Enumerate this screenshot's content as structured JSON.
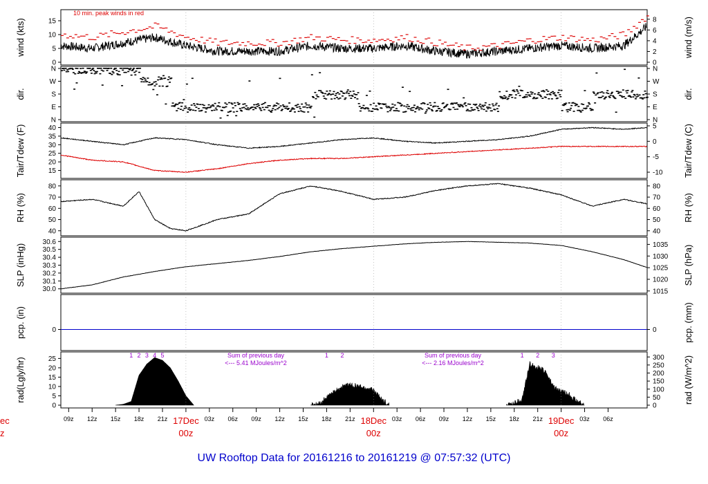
{
  "title": "UW Rooftop Data for 20161216  to  20161219 @ 07:57:32  (UTC)",
  "chart_data": [
    {
      "id": "wind",
      "type": "line",
      "ylabel_left": "wind (kts)",
      "ylabel_right": "wind (m/s)",
      "ylim": [
        0,
        18
      ],
      "yticks_left": [
        0,
        5,
        10,
        15
      ],
      "yticks_right": [
        0,
        2,
        4,
        6,
        8
      ],
      "annotation": "10 min. peak winds in red",
      "series": [
        {
          "name": "wind",
          "color": "#000000",
          "x": [
            0,
            4,
            8,
            12,
            16,
            20,
            24,
            28,
            32,
            36,
            40,
            44,
            48,
            52,
            56,
            60,
            64,
            68,
            72,
            75
          ],
          "values": [
            6,
            5,
            7,
            9,
            6,
            4,
            4,
            4,
            6,
            5,
            5,
            6,
            4,
            3,
            4,
            5,
            6,
            5,
            6,
            13
          ]
        },
        {
          "name": "10 min peak",
          "color": "#dd0000",
          "x": [
            0,
            4,
            8,
            12,
            16,
            20,
            24,
            28,
            32,
            36,
            40,
            44,
            48,
            52,
            56,
            60,
            64,
            68,
            72,
            75
          ],
          "values": [
            10,
            9,
            11,
            13,
            9,
            7,
            7,
            7,
            9,
            8,
            8,
            9,
            7,
            5,
            6,
            8,
            9,
            8,
            10,
            17
          ]
        }
      ]
    },
    {
      "id": "dir",
      "type": "scatter",
      "ylabel_left": "dir.",
      "ylabel_right": "dir.",
      "yticks_left": [
        "N",
        "W",
        "S",
        "E",
        "N"
      ],
      "yticks_right": [
        "N",
        "W",
        "S",
        "E",
        "N"
      ],
      "series": [
        {
          "name": "direction",
          "color": "#000000",
          "x": [
            0,
            4,
            8,
            10,
            14,
            18,
            22,
            26,
            29,
            32,
            35,
            38,
            40,
            44,
            48,
            52,
            56,
            60,
            64,
            68,
            72,
            75
          ],
          "values": [
            "N",
            "N",
            "N",
            "W",
            "E",
            "E",
            "E",
            "E",
            "E",
            "S",
            "S",
            "E",
            "E",
            "E",
            "E",
            "E",
            "S",
            "S",
            "E",
            "S",
            "S",
            "S"
          ]
        }
      ]
    },
    {
      "id": "temp",
      "type": "line",
      "ylabel_left": "Tair/Tdew (F)",
      "ylabel_right": "Tair/Tdew (C)",
      "ylim": [
        12,
        41
      ],
      "yticks_left": [
        15,
        20,
        25,
        30,
        35,
        40
      ],
      "yticks_right": [
        -10,
        -5,
        0,
        5
      ],
      "series": [
        {
          "name": "Tair",
          "color": "#000000",
          "x": [
            0,
            4,
            8,
            12,
            16,
            20,
            24,
            28,
            32,
            36,
            40,
            44,
            48,
            52,
            56,
            60,
            64,
            68,
            72,
            75
          ],
          "values": [
            34,
            32,
            30,
            34,
            33,
            30,
            28,
            29,
            31,
            33,
            34,
            32,
            31,
            32,
            33,
            35,
            39,
            40,
            39,
            40
          ]
        },
        {
          "name": "Tdew",
          "color": "#dd0000",
          "x": [
            0,
            4,
            8,
            12,
            16,
            20,
            24,
            28,
            32,
            36,
            40,
            44,
            48,
            52,
            56,
            60,
            64,
            68,
            72,
            75
          ],
          "values": [
            24,
            21,
            20,
            15,
            14,
            16,
            19,
            21,
            22,
            22,
            23,
            24,
            25,
            26,
            27,
            28,
            29,
            29,
            29,
            29
          ]
        }
      ]
    },
    {
      "id": "rh",
      "type": "line",
      "ylabel_left": "RH (%)",
      "ylabel_right": "RH (%)",
      "ylim": [
        38,
        83
      ],
      "yticks_left": [
        40,
        50,
        60,
        70,
        80
      ],
      "yticks_right": [
        40,
        50,
        60,
        70,
        80
      ],
      "series": [
        {
          "name": "RH",
          "color": "#000000",
          "x": [
            0,
            4,
            8,
            10,
            12,
            14,
            16,
            20,
            24,
            28,
            32,
            36,
            40,
            44,
            48,
            52,
            56,
            60,
            64,
            68,
            72,
            75
          ],
          "values": [
            66,
            68,
            62,
            75,
            50,
            42,
            40,
            50,
            55,
            73,
            80,
            75,
            68,
            70,
            76,
            80,
            82,
            78,
            72,
            62,
            68,
            64
          ]
        }
      ]
    },
    {
      "id": "slp",
      "type": "line",
      "ylabel_left": "SLP (inHg)",
      "ylabel_right": "SLP (hPa)",
      "ylim": [
        29.98,
        30.62
      ],
      "yticks_left": [
        "30.0",
        "30.1",
        "30.2",
        "30.3",
        "30.4",
        "30.5",
        "30.6"
      ],
      "yticks_right": [
        1015,
        1020,
        1025,
        1030,
        1035
      ],
      "series": [
        {
          "name": "SLP",
          "color": "#000000",
          "x": [
            0,
            4,
            8,
            12,
            16,
            20,
            24,
            28,
            32,
            36,
            40,
            44,
            48,
            52,
            56,
            60,
            64,
            68,
            72,
            75
          ],
          "values": [
            30.0,
            30.05,
            30.15,
            30.22,
            30.28,
            30.32,
            30.36,
            30.41,
            30.47,
            30.51,
            30.54,
            30.57,
            30.59,
            30.6,
            30.59,
            30.58,
            30.55,
            30.47,
            30.37,
            30.27
          ]
        }
      ]
    },
    {
      "id": "pcp",
      "type": "line",
      "ylabel_left": "pcp. (in)",
      "ylabel_right": "pcp. (mm)",
      "yticks_left": [
        0
      ],
      "yticks_right": [
        0
      ],
      "series": [
        {
          "name": "precip",
          "color": "#0000cc",
          "x": [
            0,
            75
          ],
          "values": [
            0,
            0
          ]
        }
      ]
    },
    {
      "id": "rad",
      "type": "area",
      "ylabel_left": "rad(Lgly/hr)",
      "ylabel_right": "rad (W/m^2)",
      "ylim": [
        0,
        27
      ],
      "yticks_left": [
        0,
        5,
        10,
        15,
        20,
        25
      ],
      "yticks_right": [
        0,
        50,
        100,
        150,
        200,
        250,
        300
      ],
      "series": [
        {
          "name": "day1",
          "color": "#000000",
          "x": [
            7,
            8,
            9,
            10,
            11,
            12,
            13,
            14,
            15,
            16,
            17
          ],
          "values": [
            0,
            0.5,
            2,
            16,
            22,
            25.5,
            24,
            20,
            13,
            5,
            0
          ]
        },
        {
          "name": "day2",
          "color": "#000000",
          "x": [
            32,
            33,
            34,
            35,
            36,
            37,
            38,
            39,
            40,
            41,
            42
          ],
          "values": [
            0,
            0.5,
            4,
            7,
            10,
            11,
            10,
            9,
            8,
            3,
            0
          ]
        },
        {
          "name": "day3",
          "color": "#000000",
          "x": [
            57,
            58,
            59,
            60,
            61,
            62,
            63,
            64,
            65,
            66,
            67
          ],
          "values": [
            0,
            1,
            3,
            22,
            20,
            18,
            10,
            7,
            6,
            2,
            0
          ]
        }
      ],
      "day_markers": [
        {
          "x": 11,
          "labels": [
            "1",
            "2",
            "3",
            "4",
            "5"
          ]
        },
        {
          "x": 36,
          "labels": [
            "1",
            "2"
          ]
        },
        {
          "x": 61,
          "labels": [
            "1",
            "2",
            "3"
          ]
        }
      ],
      "sum_labels": [
        {
          "line1": "Sum of previous day",
          "line2": "<--- 5.41 MJoules/m^2"
        },
        {
          "line1": "Sum of previous day",
          "line2": "<--- 2.16 MJoules/m^2"
        }
      ]
    }
  ],
  "x_axis": {
    "ticks": [
      {
        "x": 1,
        "label": "09z"
      },
      {
        "x": 4,
        "label": "12z"
      },
      {
        "x": 7,
        "label": "15z"
      },
      {
        "x": 10,
        "label": "18z"
      },
      {
        "x": 13,
        "label": "21z"
      },
      {
        "x": 16,
        "label": "17Dec",
        "sub": "00z",
        "major": true
      },
      {
        "x": 19,
        "label": "03z"
      },
      {
        "x": 22,
        "label": "06z"
      },
      {
        "x": 25,
        "label": "09z"
      },
      {
        "x": 28,
        "label": "12z"
      },
      {
        "x": 31,
        "label": "15z"
      },
      {
        "x": 34,
        "label": "18z"
      },
      {
        "x": 37,
        "label": "21z"
      },
      {
        "x": 40,
        "label": "18Dec",
        "sub": "00z",
        "major": true
      },
      {
        "x": 43,
        "label": "03z"
      },
      {
        "x": 46,
        "label": "06z"
      },
      {
        "x": 49,
        "label": "09z"
      },
      {
        "x": 52,
        "label": "12z"
      },
      {
        "x": 55,
        "label": "15z"
      },
      {
        "x": 58,
        "label": "18z"
      },
      {
        "x": 61,
        "label": "21z"
      },
      {
        "x": 64,
        "label": "19Dec",
        "sub": "00z",
        "major": true
      },
      {
        "x": 67,
        "label": "03z"
      },
      {
        "x": 70,
        "label": "06z"
      }
    ],
    "edge_label": "ec",
    "edge_sub": "z"
  },
  "colors": {
    "axis": "#000000",
    "red": "#dd0000",
    "blue": "#0000cc",
    "purple": "#9900cc",
    "title": "#0000cc"
  }
}
